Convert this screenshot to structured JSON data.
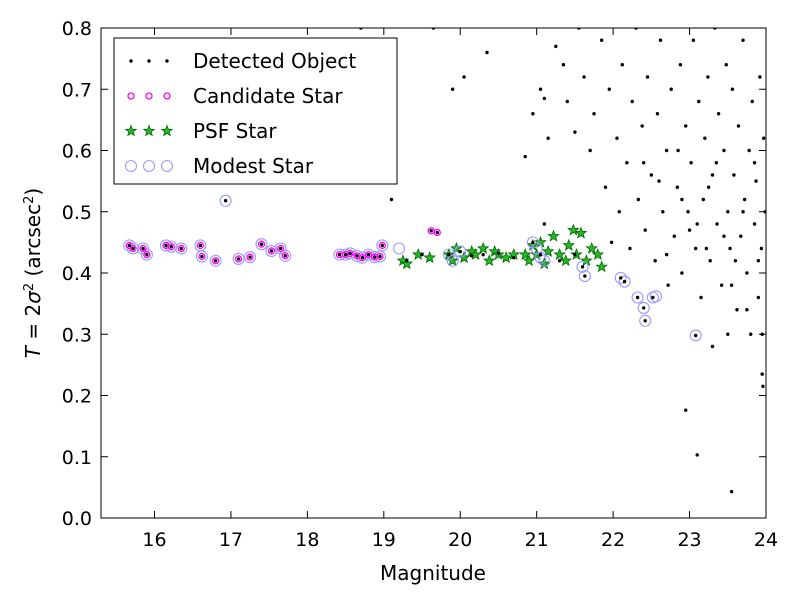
{
  "chart_data": {
    "type": "scatter",
    "xlabel": "Magnitude",
    "ylabel": "T = 2σ² (arcsec²)",
    "xlim": [
      15.3,
      24
    ],
    "ylim": [
      0.0,
      0.8
    ],
    "xticks": [
      "16",
      "17",
      "18",
      "19",
      "20",
      "21",
      "22",
      "23",
      "24"
    ],
    "yticks": [
      "0.0",
      "0.1",
      "0.2",
      "0.3",
      "0.4",
      "0.5",
      "0.6",
      "0.7",
      "0.8"
    ],
    "legend_position": "top-left",
    "series": [
      {
        "name": "Detected Object",
        "marker": "dot",
        "color": "#000000",
        "points": [
          [
            15.67,
            0.445
          ],
          [
            15.72,
            0.44
          ],
          [
            15.85,
            0.44
          ],
          [
            15.9,
            0.43
          ],
          [
            16.15,
            0.445
          ],
          [
            16.22,
            0.443
          ],
          [
            16.35,
            0.44
          ],
          [
            16.6,
            0.445
          ],
          [
            16.62,
            0.427
          ],
          [
            16.8,
            0.42
          ],
          [
            16.93,
            0.518
          ],
          [
            17.1,
            0.423
          ],
          [
            17.25,
            0.426
          ],
          [
            17.4,
            0.447
          ],
          [
            17.53,
            0.436
          ],
          [
            17.65,
            0.44
          ],
          [
            17.71,
            0.428
          ],
          [
            18.42,
            0.43
          ],
          [
            18.5,
            0.43
          ],
          [
            18.56,
            0.432
          ],
          [
            18.65,
            0.428
          ],
          [
            18.72,
            0.425
          ],
          [
            18.8,
            0.43
          ],
          [
            18.88,
            0.426
          ],
          [
            18.95,
            0.427
          ],
          [
            18.98,
            0.445
          ],
          [
            19.3,
            0.42
          ],
          [
            19.5,
            0.43
          ],
          [
            19.62,
            0.469
          ],
          [
            19.7,
            0.466
          ],
          [
            19.85,
            0.43
          ],
          [
            20.0,
            0.435
          ],
          [
            20.15,
            0.428
          ],
          [
            20.3,
            0.43
          ],
          [
            20.5,
            0.432
          ],
          [
            20.7,
            0.425
          ],
          [
            20.95,
            0.45
          ],
          [
            21.05,
            0.43
          ],
          [
            21.1,
            0.48
          ],
          [
            21.3,
            0.42
          ],
          [
            21.5,
            0.43
          ],
          [
            21.6,
            0.41
          ],
          [
            21.63,
            0.395
          ],
          [
            22.1,
            0.392
          ],
          [
            22.15,
            0.386
          ],
          [
            22.32,
            0.36
          ],
          [
            22.4,
            0.343
          ],
          [
            22.42,
            0.322
          ],
          [
            22.52,
            0.36
          ],
          [
            23.08,
            0.298
          ],
          [
            19.1,
            0.52
          ],
          [
            18.7,
            0.8
          ],
          [
            19.65,
            0.8
          ],
          [
            22.95,
            0.176
          ],
          [
            23.1,
            0.103
          ],
          [
            23.55,
            0.043
          ],
          [
            23.95,
            0.235
          ],
          [
            23.96,
            0.215
          ],
          [
            23.5,
            0.3
          ],
          [
            23.3,
            0.28
          ],
          [
            19.9,
            0.7
          ],
          [
            20.05,
            0.72
          ],
          [
            20.35,
            0.76
          ],
          [
            20.85,
            0.59
          ],
          [
            20.95,
            0.66
          ],
          [
            21.05,
            0.7
          ],
          [
            21.1,
            0.685
          ],
          [
            21.15,
            0.62
          ],
          [
            21.25,
            0.77
          ],
          [
            21.35,
            0.74
          ],
          [
            21.4,
            0.68
          ],
          [
            21.5,
            0.63
          ],
          [
            21.55,
            0.8
          ],
          [
            21.62,
            0.72
          ],
          [
            21.7,
            0.6
          ],
          [
            21.75,
            0.66
          ],
          [
            21.85,
            0.78
          ],
          [
            21.9,
            0.54
          ],
          [
            21.95,
            0.7
          ],
          [
            21.98,
            0.45
          ],
          [
            22.05,
            0.62
          ],
          [
            22.08,
            0.5
          ],
          [
            22.12,
            0.74
          ],
          [
            22.18,
            0.58
          ],
          [
            22.22,
            0.44
          ],
          [
            22.25,
            0.68
          ],
          [
            22.3,
            0.8
          ],
          [
            22.33,
            0.52
          ],
          [
            22.38,
            0.64
          ],
          [
            22.42,
            0.47
          ],
          [
            22.45,
            0.72
          ],
          [
            22.5,
            0.56
          ],
          [
            22.55,
            0.42
          ],
          [
            22.58,
            0.66
          ],
          [
            22.62,
            0.78
          ],
          [
            22.65,
            0.5
          ],
          [
            22.7,
            0.6
          ],
          [
            22.72,
            0.38
          ],
          [
            22.76,
            0.7
          ],
          [
            22.8,
            0.46
          ],
          [
            22.84,
            0.54
          ],
          [
            22.88,
            0.74
          ],
          [
            22.9,
            0.4
          ],
          [
            22.95,
            0.64
          ],
          [
            22.98,
            0.5
          ],
          [
            23.02,
            0.58
          ],
          [
            23.05,
            0.78
          ],
          [
            23.08,
            0.44
          ],
          [
            23.12,
            0.68
          ],
          [
            23.15,
            0.36
          ],
          [
            23.18,
            0.52
          ],
          [
            23.2,
            0.62
          ],
          [
            23.24,
            0.72
          ],
          [
            23.27,
            0.42
          ],
          [
            23.3,
            0.56
          ],
          [
            23.33,
            0.8
          ],
          [
            23.36,
            0.48
          ],
          [
            23.38,
            0.66
          ],
          [
            23.42,
            0.38
          ],
          [
            23.45,
            0.6
          ],
          [
            23.48,
            0.74
          ],
          [
            23.5,
            0.5
          ],
          [
            23.53,
            0.44
          ],
          [
            23.56,
            0.7
          ],
          [
            23.58,
            0.56
          ],
          [
            23.62,
            0.34
          ],
          [
            23.64,
            0.64
          ],
          [
            23.67,
            0.46
          ],
          [
            23.7,
            0.78
          ],
          [
            23.72,
            0.52
          ],
          [
            23.75,
            0.4
          ],
          [
            23.78,
            0.6
          ],
          [
            23.8,
            0.3
          ],
          [
            23.82,
            0.68
          ],
          [
            23.85,
            0.48
          ],
          [
            23.87,
            0.55
          ],
          [
            23.9,
            0.36
          ],
          [
            23.92,
            0.72
          ],
          [
            23.94,
            0.44
          ],
          [
            23.97,
            0.62
          ],
          [
            23.99,
            0.5
          ],
          [
            22.6,
            0.55
          ],
          [
            22.85,
            0.6
          ],
          [
            23.1,
            0.48
          ],
          [
            23.35,
            0.58
          ],
          [
            23.6,
            0.42
          ],
          [
            23.85,
            0.58
          ],
          [
            22.9,
            0.52
          ],
          [
            23.25,
            0.54
          ],
          [
            23.45,
            0.46
          ],
          [
            23.7,
            0.5
          ],
          [
            23.9,
            0.42
          ],
          [
            22.4,
            0.58
          ],
          [
            22.7,
            0.43
          ],
          [
            23.0,
            0.47
          ],
          [
            23.22,
            0.44
          ],
          [
            23.55,
            0.38
          ],
          [
            23.75,
            0.34
          ],
          [
            23.95,
            0.3
          ]
        ]
      },
      {
        "name": "Candidate Star",
        "marker": "small-magenta-circle",
        "color": "#ff00ff",
        "points": [
          [
            15.67,
            0.445
          ],
          [
            15.72,
            0.44
          ],
          [
            15.85,
            0.44
          ],
          [
            15.9,
            0.43
          ],
          [
            16.15,
            0.445
          ],
          [
            16.22,
            0.443
          ],
          [
            16.35,
            0.44
          ],
          [
            16.6,
            0.445
          ],
          [
            16.62,
            0.427
          ],
          [
            16.8,
            0.42
          ],
          [
            17.1,
            0.423
          ],
          [
            17.25,
            0.426
          ],
          [
            17.4,
            0.447
          ],
          [
            17.53,
            0.436
          ],
          [
            17.65,
            0.44
          ],
          [
            17.71,
            0.428
          ],
          [
            18.42,
            0.43
          ],
          [
            18.5,
            0.43
          ],
          [
            18.56,
            0.432
          ],
          [
            18.65,
            0.428
          ],
          [
            18.72,
            0.425
          ],
          [
            18.8,
            0.43
          ],
          [
            18.88,
            0.426
          ],
          [
            18.95,
            0.427
          ],
          [
            18.98,
            0.445
          ],
          [
            19.62,
            0.469
          ],
          [
            19.7,
            0.466
          ]
        ]
      },
      {
        "name": "PSF Star",
        "marker": "star",
        "color": "#22bb22",
        "points": [
          [
            19.25,
            0.42
          ],
          [
            19.3,
            0.415
          ],
          [
            19.45,
            0.43
          ],
          [
            19.6,
            0.425
          ],
          [
            19.85,
            0.43
          ],
          [
            19.9,
            0.42
          ],
          [
            19.95,
            0.44
          ],
          [
            20.05,
            0.425
          ],
          [
            20.15,
            0.435
          ],
          [
            20.2,
            0.43
          ],
          [
            20.3,
            0.44
          ],
          [
            20.38,
            0.42
          ],
          [
            20.45,
            0.435
          ],
          [
            20.5,
            0.43
          ],
          [
            20.6,
            0.425
          ],
          [
            20.7,
            0.43
          ],
          [
            20.85,
            0.43
          ],
          [
            20.9,
            0.42
          ],
          [
            20.95,
            0.445
          ],
          [
            21.0,
            0.43
          ],
          [
            21.05,
            0.45
          ],
          [
            21.1,
            0.415
          ],
          [
            21.15,
            0.435
          ],
          [
            21.22,
            0.46
          ],
          [
            21.3,
            0.43
          ],
          [
            21.38,
            0.42
          ],
          [
            21.42,
            0.445
          ],
          [
            21.48,
            0.47
          ],
          [
            21.52,
            0.43
          ],
          [
            21.58,
            0.465
          ],
          [
            21.65,
            0.42
          ],
          [
            21.72,
            0.44
          ],
          [
            21.8,
            0.43
          ],
          [
            21.85,
            0.41
          ]
        ]
      },
      {
        "name": "Modest Star",
        "marker": "large-blue-open-circle",
        "color": "#9999ff",
        "points": [
          [
            15.67,
            0.445
          ],
          [
            15.72,
            0.44
          ],
          [
            15.85,
            0.44
          ],
          [
            15.9,
            0.43
          ],
          [
            16.15,
            0.445
          ],
          [
            16.22,
            0.443
          ],
          [
            16.35,
            0.44
          ],
          [
            16.6,
            0.445
          ],
          [
            16.62,
            0.427
          ],
          [
            16.8,
            0.42
          ],
          [
            16.93,
            0.518
          ],
          [
            17.1,
            0.423
          ],
          [
            17.25,
            0.426
          ],
          [
            17.4,
            0.447
          ],
          [
            17.53,
            0.436
          ],
          [
            17.65,
            0.44
          ],
          [
            17.71,
            0.428
          ],
          [
            18.42,
            0.43
          ],
          [
            18.5,
            0.43
          ],
          [
            18.56,
            0.432
          ],
          [
            18.65,
            0.428
          ],
          [
            18.72,
            0.425
          ],
          [
            18.8,
            0.43
          ],
          [
            18.88,
            0.426
          ],
          [
            18.95,
            0.427
          ],
          [
            18.98,
            0.445
          ],
          [
            19.2,
            0.44
          ],
          [
            19.85,
            0.43
          ],
          [
            19.9,
            0.42
          ],
          [
            20.0,
            0.435
          ],
          [
            20.95,
            0.45
          ],
          [
            21.0,
            0.44
          ],
          [
            21.05,
            0.425
          ],
          [
            21.1,
            0.42
          ],
          [
            21.6,
            0.41
          ],
          [
            21.63,
            0.395
          ],
          [
            22.1,
            0.392
          ],
          [
            22.15,
            0.386
          ],
          [
            22.32,
            0.36
          ],
          [
            22.4,
            0.343
          ],
          [
            22.42,
            0.322
          ],
          [
            22.52,
            0.36
          ],
          [
            22.56,
            0.362
          ],
          [
            23.08,
            0.298
          ]
        ]
      }
    ]
  }
}
